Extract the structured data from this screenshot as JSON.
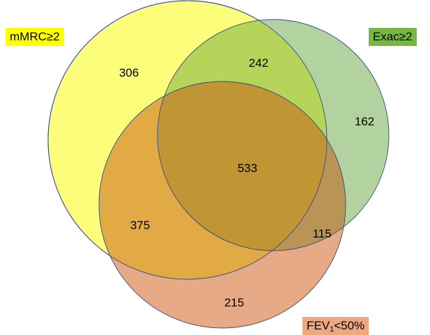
{
  "sets": {
    "mmrc": {
      "label": "mMRC≥2",
      "fill": "#ffff66",
      "label_bg": "#ffff00"
    },
    "exac": {
      "label": "Exac≥2",
      "fill": "#88bb55",
      "label_bg": "#77b844"
    },
    "fev": {
      "label_main": "FEV",
      "label_sub": "1",
      "label_rest": "<50%",
      "fill": "#e07a3a",
      "label_bg": "#eda880"
    }
  },
  "regions": {
    "mmrc_only": "306",
    "mmrc_exac": "242",
    "exac_only": "162",
    "all_three": "533",
    "mmrc_fev": "375",
    "exac_fev": "115",
    "fev_only": "215"
  }
}
